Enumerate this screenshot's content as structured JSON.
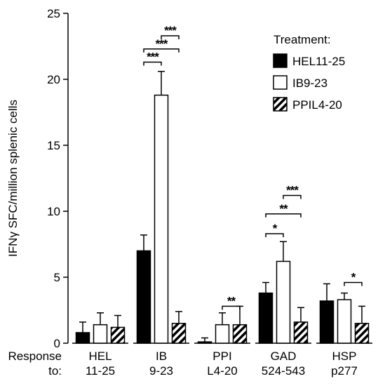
{
  "chart_data": {
    "type": "bar",
    "ylabel": "IFNγ SFC/million splenic cells",
    "ylim": [
      0,
      25
    ],
    "yticks": [
      0,
      5,
      10,
      15,
      20,
      25
    ],
    "row_label": [
      "Response",
      "to:"
    ],
    "categories": [
      [
        "HEL",
        "11-25"
      ],
      [
        "IB",
        "9-23"
      ],
      [
        "PPI",
        "L4-20"
      ],
      [
        "GAD",
        "524-543"
      ],
      [
        "HSP",
        "p277"
      ]
    ],
    "legend_title": "Treatment:",
    "series": [
      {
        "name": "HEL11-25",
        "fill": "solid",
        "values": [
          0.8,
          7.0,
          0.1,
          3.8,
          3.2
        ],
        "errors": [
          0.8,
          1.2,
          0.3,
          0.8,
          1.3
        ]
      },
      {
        "name": "IB9-23",
        "fill": "open",
        "values": [
          1.4,
          18.8,
          1.4,
          6.2,
          3.3
        ],
        "errors": [
          0.9,
          1.8,
          0.9,
          1.5,
          0.5
        ]
      },
      {
        "name": "PPIL4-20",
        "fill": "hatched",
        "values": [
          1.2,
          1.5,
          1.4,
          1.6,
          1.5
        ],
        "errors": [
          0.9,
          0.9,
          1.4,
          1.1,
          1.3
        ]
      }
    ],
    "significance": [
      {
        "category": 1,
        "from": 0,
        "to": 1,
        "label": "***",
        "level": 21.3
      },
      {
        "category": 1,
        "from": 0,
        "to": 2,
        "label": "***",
        "level": 22.3
      },
      {
        "category": 1,
        "from": 1,
        "to": 2,
        "label": "***",
        "level": 23.3
      },
      {
        "category": 2,
        "from": 1,
        "to": 2,
        "label": "**",
        "level": 2.8
      },
      {
        "category": 3,
        "from": 0,
        "to": 1,
        "label": "*",
        "level": 8.3
      },
      {
        "category": 3,
        "from": 0,
        "to": 2,
        "label": "**",
        "level": 9.8
      },
      {
        "category": 3,
        "from": 1,
        "to": 2,
        "label": "***",
        "level": 11.2
      },
      {
        "category": 4,
        "from": 1,
        "to": 2,
        "label": "*",
        "level": 4.6
      }
    ],
    "colors": {
      "bar_stroke": "#000000",
      "solid_fill": "#000000",
      "open_fill": "#ffffff"
    }
  }
}
